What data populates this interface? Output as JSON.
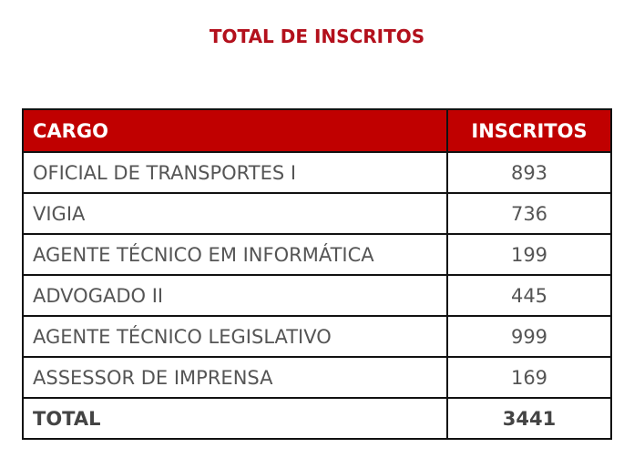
{
  "title": "TOTAL DE INSCRITOS",
  "table": {
    "headers": {
      "cargo": "CARGO",
      "inscritos": "INSCRITOS"
    },
    "rows": [
      {
        "cargo": "OFICIAL DE TRANSPORTES I",
        "inscritos": "893"
      },
      {
        "cargo": "VIGIA",
        "inscritos": "736"
      },
      {
        "cargo": "AGENTE TÉCNICO EM INFORMÁTICA",
        "inscritos": "199"
      },
      {
        "cargo": "ADVOGADO II",
        "inscritos": "445"
      },
      {
        "cargo": "AGENTE TÉCNICO LEGISLATIVO",
        "inscritos": "999"
      },
      {
        "cargo": "ASSESSOR DE IMPRENSA",
        "inscritos": "169"
      }
    ],
    "total": {
      "label": "TOTAL",
      "value": "3441"
    }
  },
  "colors": {
    "title": "#b3101c",
    "header_bg": "#c00000",
    "header_text": "#ffffff",
    "border": "#111111",
    "cell_text": "#555555"
  }
}
